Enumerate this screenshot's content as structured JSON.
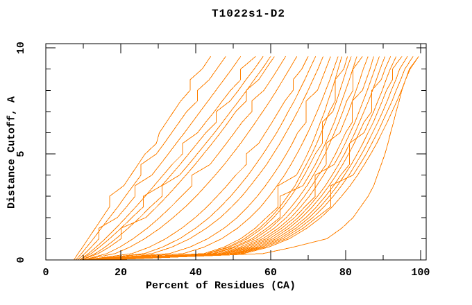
{
  "chart_data": {
    "type": "line",
    "title": "T1022s1-D2",
    "xlabel": "Percent of Residues (CA)",
    "ylabel": "Distance Cutoff, A",
    "xlim": [
      0,
      101.5
    ],
    "ylim": [
      0,
      10.2
    ],
    "xticks_major": [
      0,
      20,
      40,
      60,
      80,
      100
    ],
    "xticks_minor": [
      10,
      30,
      50,
      70,
      90
    ],
    "yticks_major": [
      0,
      5,
      10
    ],
    "yticks_minor": [
      1,
      2,
      3,
      4,
      6,
      7,
      8,
      9
    ],
    "grid": false,
    "legend": "none",
    "line_color": "#ff8000",
    "axis_color": "#000000",
    "y_grid": [
      0,
      0.3,
      0.6,
      1,
      1.5,
      2,
      2.5,
      3,
      3.5,
      4,
      4.5,
      5,
      5.5,
      6,
      6.5,
      7,
      7.5,
      8,
      8.5,
      9,
      9.6
    ],
    "curves_x": [
      [
        7.5,
        8.6,
        9.8,
        11.3,
        13.2,
        15.1,
        17,
        17,
        20.8,
        22.7,
        24.6,
        26.5,
        29.5,
        30.3,
        32.2,
        34.1,
        36,
        38.5,
        38.5,
        41.7,
        44
      ],
      [
        8,
        9.5,
        10.9,
        12.7,
        14.8,
        17,
        19.2,
        21.2,
        23.3,
        25.4,
        25.4,
        29.5,
        31.6,
        33.6,
        35.6,
        37.6,
        40.5,
        40.5,
        43.6,
        45.6,
        48
      ],
      [
        8.5,
        10.4,
        12.1,
        14.2,
        14.2,
        19.1,
        21.5,
        23.8,
        23.8,
        28.3,
        30.5,
        32.7,
        34.8,
        37,
        39.1,
        41.2,
        43.3,
        45.4,
        47.5,
        49.6,
        52
      ],
      [
        9,
        11.4,
        13.4,
        15.9,
        18.7,
        21.4,
        24,
        26.5,
        28.9,
        31.3,
        33.7,
        36.5,
        36.5,
        40.5,
        42.7,
        45,
        47.1,
        49.3,
        52,
        52,
        56
      ],
      [
        9,
        12.1,
        14.3,
        17,
        20.1,
        23,
        26,
        26,
        30.9,
        33.4,
        35.8,
        38.1,
        40.4,
        42.7,
        45.5,
        45.5,
        49.2,
        51.4,
        53.4,
        55.6,
        58
      ],
      [
        9.5,
        13.2,
        15.8,
        18.7,
        22,
        25.1,
        27.9,
        31,
        31,
        35.7,
        38.1,
        40.4,
        42.7,
        45,
        47.2,
        49.3,
        51.5,
        53.6,
        55.6,
        57.7,
        60
      ],
      [
        9.5,
        14,
        16.9,
        20.1,
        20.1,
        26.7,
        29.6,
        32.3,
        34.9,
        37.4,
        39.8,
        42.1,
        44.4,
        46.6,
        48.7,
        50.7,
        53.5,
        53.5,
        56.8,
        58.7,
        61
      ],
      [
        10,
        16.3,
        19.7,
        23.3,
        27.1,
        30.4,
        33.4,
        36.2,
        39,
        39,
        43.8,
        46,
        48.2,
        50.3,
        52.4,
        55,
        55,
        58.2,
        60.1,
        61.9,
        64
      ],
      [
        10,
        18.5,
        22.4,
        26.4,
        30.5,
        34,
        37.2,
        40.1,
        42.7,
        45.2,
        47.6,
        49.8,
        52,
        54,
        56,
        57.9,
        59.8,
        61.6,
        63.3,
        65,
        67
      ],
      [
        10.5,
        23,
        27.6,
        32,
        36.3,
        39.9,
        43,
        45.7,
        48.3,
        50.7,
        53.5,
        53.5,
        56.8,
        58.6,
        60.4,
        62.1,
        63.8,
        66,
        66,
        68.3,
        70
      ],
      [
        11,
        26.3,
        31.1,
        35.7,
        40,
        43.6,
        46.6,
        49.3,
        51.7,
        54,
        56,
        58,
        59.8,
        61.6,
        63.2,
        64.7,
        66.3,
        67.7,
        69.1,
        70.4,
        72
      ],
      [
        9,
        28.4,
        33.6,
        38.4,
        42.9,
        46.6,
        49.6,
        52.3,
        54.6,
        56.8,
        58.9,
        60.7,
        62.5,
        64.1,
        65.7,
        67.2,
        68.6,
        70,
        71.3,
        72.6,
        74
      ],
      [
        9.5,
        33,
        38.4,
        43.2,
        47.6,
        51.1,
        53.9,
        56.4,
        58.6,
        60.6,
        62.5,
        64.2,
        65.8,
        67.2,
        69.5,
        69.5,
        69.5,
        72.5,
        73.6,
        74.7,
        76
      ],
      [
        10,
        36.7,
        42.2,
        46.9,
        51.2,
        54.5,
        57.3,
        59.6,
        61.7,
        63.7,
        65.4,
        67,
        68.5,
        69.9,
        71.2,
        72.4,
        73.6,
        74.7,
        75.8,
        76.8,
        78
      ],
      [
        10,
        42.2,
        47.5,
        52,
        55.9,
        58.9,
        62,
        62,
        62,
        66.9,
        68.4,
        69.8,
        71.1,
        72.2,
        73.3,
        74.4,
        75.3,
        76.3,
        77.2,
        78,
        79
      ],
      [
        10.5,
        43,
        48.5,
        53,
        57,
        60,
        62.5,
        64.5,
        66.5,
        68,
        69.5,
        71,
        72.3,
        73.5,
        74.6,
        75.7,
        77.2,
        77.2,
        77.2,
        79.5,
        80.5
      ],
      [
        11,
        43.5,
        49,
        53.8,
        57.8,
        60.8,
        63.3,
        65.4,
        67.3,
        69,
        70.5,
        71.9,
        73.8,
        73.8,
        73.8,
        76.6,
        77.6,
        78.5,
        79.4,
        80.3,
        81.5
      ],
      [
        11,
        44.5,
        50,
        55,
        59,
        62.5,
        62.5,
        62.5,
        68.6,
        70.3,
        71.9,
        73.3,
        74.6,
        75.8,
        77,
        78,
        79,
        80,
        81,
        81.9,
        83
      ],
      [
        11.5,
        45,
        50.7,
        55.8,
        59.9,
        63,
        65.5,
        67.7,
        69.7,
        71.4,
        73,
        74.5,
        75.8,
        77,
        78.2,
        79.3,
        80.3,
        82,
        82,
        82,
        84.5
      ],
      [
        12,
        46,
        51.8,
        56.9,
        61,
        64.2,
        66.8,
        69,
        71,
        72.8,
        74.8,
        74.8,
        74.8,
        78.5,
        79.6,
        80.8,
        81.8,
        82.8,
        83.8,
        84.7,
        86
      ],
      [
        12,
        46.8,
        52.7,
        57.9,
        62.1,
        65.4,
        68,
        70.3,
        72.3,
        74.1,
        75.8,
        77.3,
        78.7,
        80,
        81.8,
        81.8,
        81.8,
        84.5,
        85.5,
        86.5,
        87.5
      ],
      [
        12.5,
        47.5,
        53.5,
        58.8,
        63,
        66.4,
        69.1,
        71.9,
        71.9,
        71.9,
        76.9,
        78.5,
        79.9,
        81.2,
        82.5,
        83.6,
        84.7,
        85.8,
        86.8,
        87.8,
        89
      ],
      [
        13,
        48.2,
        54.4,
        59.7,
        64,
        67.4,
        70.1,
        72.5,
        74.6,
        76.4,
        78.1,
        79.7,
        81.1,
        82.5,
        83.7,
        84.9,
        86.1,
        87.2,
        88.2,
        89.2,
        90.5
      ],
      [
        13,
        49,
        55.2,
        60.6,
        64.9,
        68.3,
        71.1,
        73.5,
        75.6,
        77.5,
        79.2,
        80.8,
        82.3,
        83.6,
        84.9,
        87,
        87,
        87,
        89.5,
        90.5,
        92
      ],
      [
        13.5,
        49.8,
        56.1,
        61.5,
        65.9,
        69.4,
        72.2,
        74.6,
        76.8,
        78.7,
        81,
        81,
        81,
        84.9,
        86.2,
        87.5,
        88.6,
        89.8,
        90.8,
        91.9,
        93.5
      ],
      [
        14,
        50.5,
        56.9,
        62.4,
        66.8,
        70.3,
        73.2,
        75.6,
        77.8,
        79.7,
        81.5,
        83.1,
        84.6,
        86,
        87.4,
        88.6,
        89.8,
        90.9,
        92.5,
        92.5,
        95
      ],
      [
        14,
        51.2,
        57.7,
        63.2,
        67.7,
        71.3,
        74.2,
        76.7,
        78.9,
        80.9,
        82.6,
        84.3,
        85.8,
        87.2,
        88.6,
        89.9,
        91.1,
        92.2,
        93.4,
        94.4,
        96.5
      ],
      [
        14.5,
        52,
        58.5,
        64.1,
        68.7,
        72.3,
        76,
        76,
        76,
        82,
        83.8,
        85.5,
        87,
        88.5,
        89.8,
        91.1,
        92.4,
        93.5,
        94.7,
        95.8,
        98
      ],
      [
        15,
        52.8,
        59.4,
        65,
        69.7,
        73.4,
        76.4,
        78.9,
        81.2,
        83.2,
        85,
        86.7,
        88.3,
        89.7,
        91.1,
        92.4,
        93.7,
        94.9,
        96,
        97.2,
        99.5
      ],
      [
        16,
        58,
        66,
        75,
        79,
        82,
        84,
        86,
        87.5,
        88.5,
        89.5,
        90.5,
        91.3,
        92,
        92.8,
        93.5,
        94.3,
        95,
        96,
        97,
        99.5
      ]
    ]
  }
}
